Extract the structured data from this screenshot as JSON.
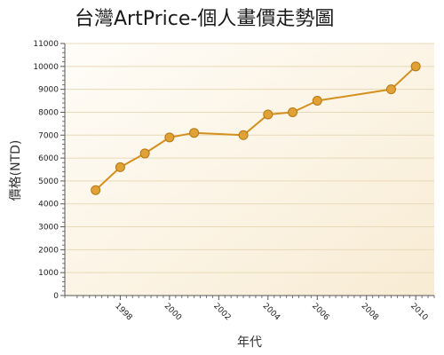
{
  "chart_data": {
    "type": "line",
    "title": "台灣ArtPrice-個人畫價走勢圖",
    "xlabel": "年代",
    "ylabel": "價格(NTD)",
    "x": [
      1997,
      1998,
      1999,
      2000,
      2001,
      2003,
      2004,
      2005,
      2006,
      2009,
      2010
    ],
    "y": [
      4600,
      5600,
      6200,
      6900,
      7100,
      7000,
      7900,
      8000,
      8500,
      9000,
      10000
    ],
    "xlim": [
      1995.75,
      2010.75
    ],
    "ylim": [
      0,
      11000
    ],
    "x_ticks": [
      "1998",
      "2000",
      "2002",
      "2004",
      "2006",
      "2008",
      "2010"
    ],
    "y_ticks": [
      "0",
      "1000",
      "2000",
      "3000",
      "4000",
      "5000",
      "6000",
      "7000",
      "8000",
      "9000",
      "10000",
      "11000"
    ],
    "grid": true,
    "legend": "none",
    "colors": {
      "line": "#d4901e",
      "marker_fill": "#e0a236",
      "marker_stroke": "#b57812",
      "plot_bg_light": "#fffdf8",
      "plot_bg_dark": "#f8ebd3",
      "grid": "#e8d9b8"
    }
  }
}
